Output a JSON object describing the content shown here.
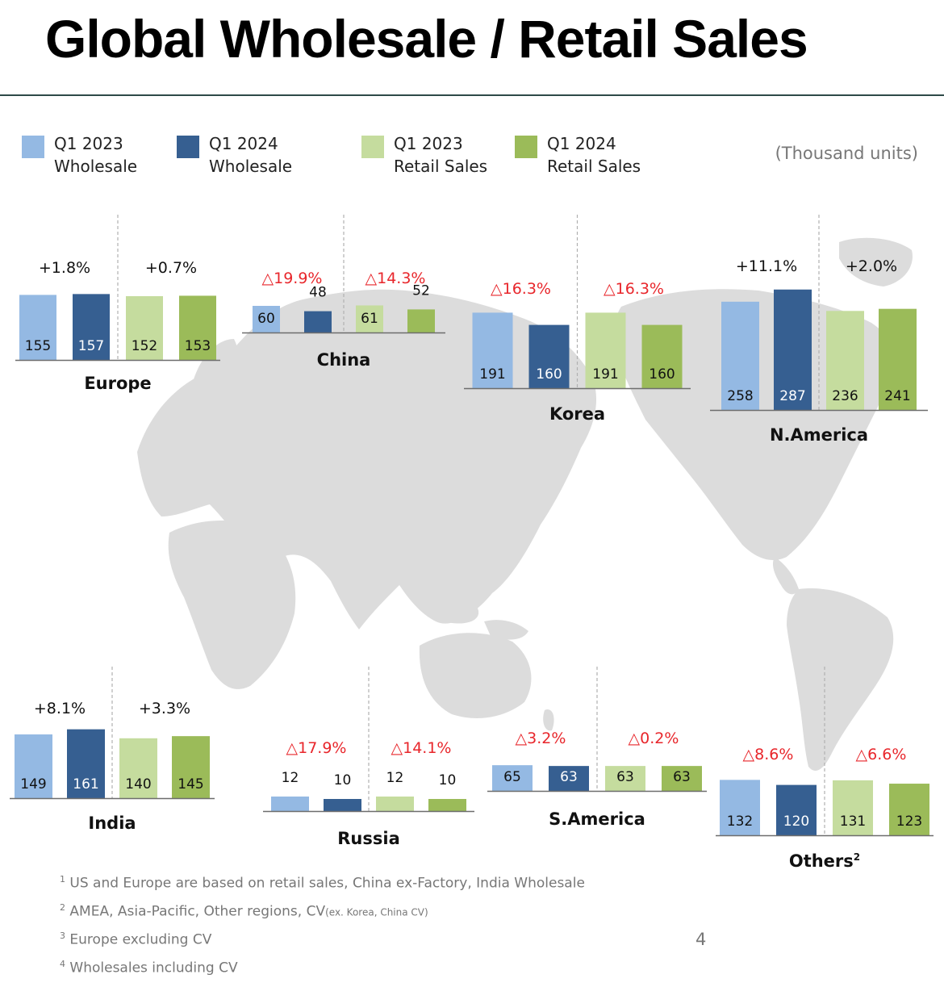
{
  "title": "Global Wholesale / Retail Sales",
  "units": "(Thousand units)",
  "page_number": "4",
  "colors": {
    "wholesale_2023": "#94b9e3",
    "wholesale_2024": "#365f91",
    "retail_2023": "#c5dc9e",
    "retail_2024": "#9bbb59",
    "increase": "#111111",
    "decrease": "#e8262b",
    "map": "#dcdcdc"
  },
  "legend": [
    {
      "line1": "Q1 2023",
      "line2": "Wholesale",
      "color": "#94b9e3"
    },
    {
      "line1": "Q1 2024",
      "line2": "Wholesale",
      "color": "#365f91"
    },
    {
      "line1": "Q1 2023",
      "line2": "Retail Sales",
      "color": "#c5dc9e"
    },
    {
      "line1": "Q1 2024",
      "line2": "Retail Sales",
      "color": "#9bbb59"
    }
  ],
  "chart_data": {
    "type": "bar",
    "categories": [
      "Q1 2023 Wholesale",
      "Q1 2024 Wholesale",
      "Q1 2023 Retail Sales",
      "Q1 2024 Retail Sales"
    ],
    "regions": [
      {
        "name": "Europe",
        "sup": "",
        "values": [
          155,
          157,
          152,
          153
        ],
        "changes": [
          "+1.8%",
          "+0.7%"
        ],
        "change_dirs": [
          "up",
          "up"
        ]
      },
      {
        "name": "China",
        "sup": "",
        "values": [
          60,
          48,
          61,
          52
        ],
        "changes": [
          "△19.9%",
          "△14.3%"
        ],
        "change_dirs": [
          "down",
          "down"
        ]
      },
      {
        "name": "Korea",
        "sup": "",
        "values": [
          191,
          160,
          191,
          160
        ],
        "changes": [
          "△16.3%",
          "△16.3%"
        ],
        "change_dirs": [
          "down",
          "down"
        ]
      },
      {
        "name": "N.America",
        "sup": "",
        "values": [
          258,
          287,
          236,
          241
        ],
        "changes": [
          "+11.1%",
          "+2.0%"
        ],
        "change_dirs": [
          "up",
          "up"
        ]
      },
      {
        "name": "India",
        "sup": "",
        "values": [
          149,
          161,
          140,
          145
        ],
        "changes": [
          "+8.1%",
          "+3.3%"
        ],
        "change_dirs": [
          "up",
          "up"
        ]
      },
      {
        "name": "Russia",
        "sup": "",
        "values": [
          12,
          10,
          12,
          10
        ],
        "changes": [
          "△17.9%",
          "△14.1%"
        ],
        "change_dirs": [
          "down",
          "down"
        ]
      },
      {
        "name": "S.America",
        "sup": "",
        "values": [
          65,
          63,
          63,
          63
        ],
        "changes": [
          "△3.2%",
          "△0.2%"
        ],
        "change_dirs": [
          "down",
          "down"
        ]
      },
      {
        "name": "Others",
        "sup": "2",
        "values": [
          132,
          120,
          131,
          123
        ],
        "changes": [
          "△8.6%",
          "△6.6%"
        ],
        "change_dirs": [
          "down",
          "down"
        ]
      }
    ]
  },
  "footnotes": [
    {
      "num": "1",
      "text": "US and Europe are based on retail sales, China ex-Factory, India Wholesale",
      "small": ""
    },
    {
      "num": "2",
      "text": "AMEA, Asia-Pacific, Other regions, CV",
      "small": "(ex. Korea, China CV)"
    },
    {
      "num": "3",
      "text": "Europe excluding CV",
      "small": ""
    },
    {
      "num": "4",
      "text": "Wholesales including CV",
      "small": ""
    }
  ]
}
